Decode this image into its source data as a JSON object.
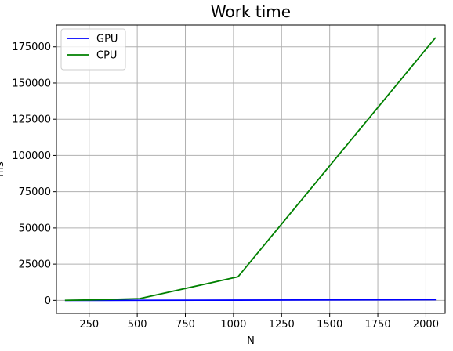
{
  "chart_data": {
    "type": "line",
    "title": "Work time",
    "xlabel": "N",
    "ylabel": "ms",
    "xlim": [
      80,
      2100
    ],
    "ylim": [
      -9000,
      190000
    ],
    "grid": true,
    "legend_position": "top-left",
    "x_ticks": [
      250,
      500,
      750,
      1000,
      1250,
      1500,
      1750,
      2000
    ],
    "y_ticks": [
      0,
      25000,
      50000,
      75000,
      100000,
      125000,
      150000,
      175000
    ],
    "x_tick_labels": [
      "250",
      "500",
      "750",
      "1000",
      "1250",
      "1500",
      "1750",
      "2000"
    ],
    "y_tick_labels": [
      "0",
      "25000",
      "50000",
      "75000",
      "100000",
      "125000",
      "150000",
      "175000"
    ],
    "x": [
      128,
      256,
      512,
      1024,
      2048
    ],
    "series": [
      {
        "name": "GPU",
        "color": "#0000ff",
        "values": [
          5,
          15,
          60,
          150,
          450
        ]
      },
      {
        "name": "CPU",
        "color": "#008000",
        "values": [
          50,
          300,
          1200,
          16300,
          181000
        ]
      }
    ]
  }
}
